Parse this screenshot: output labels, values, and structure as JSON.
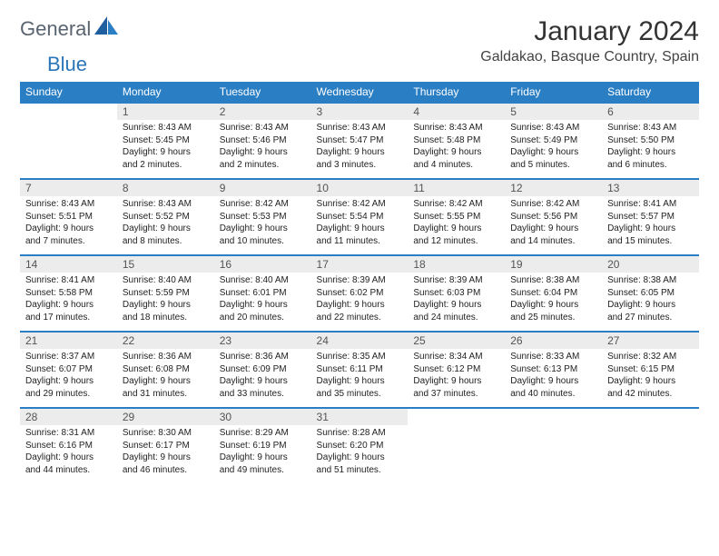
{
  "brand": {
    "text1": "General",
    "text2": "Blue"
  },
  "colors": {
    "brand_blue": "#2a76b8",
    "header_bg": "#2a7ec4",
    "header_text": "#ffffff",
    "daynum_bg": "#ececec",
    "daynum_text": "#545454",
    "body_text": "#222222",
    "grid_line": "#2a7ec4",
    "page_bg": "#ffffff"
  },
  "title": "January 2024",
  "location": "Galdakao, Basque Country, Spain",
  "weekdays": [
    "Sunday",
    "Monday",
    "Tuesday",
    "Wednesday",
    "Thursday",
    "Friday",
    "Saturday"
  ],
  "weeks": [
    [
      {
        "n": "",
        "lines": [
          "",
          "",
          "",
          ""
        ]
      },
      {
        "n": "1",
        "lines": [
          "Sunrise: 8:43 AM",
          "Sunset: 5:45 PM",
          "Daylight: 9 hours",
          "and 2 minutes."
        ]
      },
      {
        "n": "2",
        "lines": [
          "Sunrise: 8:43 AM",
          "Sunset: 5:46 PM",
          "Daylight: 9 hours",
          "and 2 minutes."
        ]
      },
      {
        "n": "3",
        "lines": [
          "Sunrise: 8:43 AM",
          "Sunset: 5:47 PM",
          "Daylight: 9 hours",
          "and 3 minutes."
        ]
      },
      {
        "n": "4",
        "lines": [
          "Sunrise: 8:43 AM",
          "Sunset: 5:48 PM",
          "Daylight: 9 hours",
          "and 4 minutes."
        ]
      },
      {
        "n": "5",
        "lines": [
          "Sunrise: 8:43 AM",
          "Sunset: 5:49 PM",
          "Daylight: 9 hours",
          "and 5 minutes."
        ]
      },
      {
        "n": "6",
        "lines": [
          "Sunrise: 8:43 AM",
          "Sunset: 5:50 PM",
          "Daylight: 9 hours",
          "and 6 minutes."
        ]
      }
    ],
    [
      {
        "n": "7",
        "lines": [
          "Sunrise: 8:43 AM",
          "Sunset: 5:51 PM",
          "Daylight: 9 hours",
          "and 7 minutes."
        ]
      },
      {
        "n": "8",
        "lines": [
          "Sunrise: 8:43 AM",
          "Sunset: 5:52 PM",
          "Daylight: 9 hours",
          "and 8 minutes."
        ]
      },
      {
        "n": "9",
        "lines": [
          "Sunrise: 8:42 AM",
          "Sunset: 5:53 PM",
          "Daylight: 9 hours",
          "and 10 minutes."
        ]
      },
      {
        "n": "10",
        "lines": [
          "Sunrise: 8:42 AM",
          "Sunset: 5:54 PM",
          "Daylight: 9 hours",
          "and 11 minutes."
        ]
      },
      {
        "n": "11",
        "lines": [
          "Sunrise: 8:42 AM",
          "Sunset: 5:55 PM",
          "Daylight: 9 hours",
          "and 12 minutes."
        ]
      },
      {
        "n": "12",
        "lines": [
          "Sunrise: 8:42 AM",
          "Sunset: 5:56 PM",
          "Daylight: 9 hours",
          "and 14 minutes."
        ]
      },
      {
        "n": "13",
        "lines": [
          "Sunrise: 8:41 AM",
          "Sunset: 5:57 PM",
          "Daylight: 9 hours",
          "and 15 minutes."
        ]
      }
    ],
    [
      {
        "n": "14",
        "lines": [
          "Sunrise: 8:41 AM",
          "Sunset: 5:58 PM",
          "Daylight: 9 hours",
          "and 17 minutes."
        ]
      },
      {
        "n": "15",
        "lines": [
          "Sunrise: 8:40 AM",
          "Sunset: 5:59 PM",
          "Daylight: 9 hours",
          "and 18 minutes."
        ]
      },
      {
        "n": "16",
        "lines": [
          "Sunrise: 8:40 AM",
          "Sunset: 6:01 PM",
          "Daylight: 9 hours",
          "and 20 minutes."
        ]
      },
      {
        "n": "17",
        "lines": [
          "Sunrise: 8:39 AM",
          "Sunset: 6:02 PM",
          "Daylight: 9 hours",
          "and 22 minutes."
        ]
      },
      {
        "n": "18",
        "lines": [
          "Sunrise: 8:39 AM",
          "Sunset: 6:03 PM",
          "Daylight: 9 hours",
          "and 24 minutes."
        ]
      },
      {
        "n": "19",
        "lines": [
          "Sunrise: 8:38 AM",
          "Sunset: 6:04 PM",
          "Daylight: 9 hours",
          "and 25 minutes."
        ]
      },
      {
        "n": "20",
        "lines": [
          "Sunrise: 8:38 AM",
          "Sunset: 6:05 PM",
          "Daylight: 9 hours",
          "and 27 minutes."
        ]
      }
    ],
    [
      {
        "n": "21",
        "lines": [
          "Sunrise: 8:37 AM",
          "Sunset: 6:07 PM",
          "Daylight: 9 hours",
          "and 29 minutes."
        ]
      },
      {
        "n": "22",
        "lines": [
          "Sunrise: 8:36 AM",
          "Sunset: 6:08 PM",
          "Daylight: 9 hours",
          "and 31 minutes."
        ]
      },
      {
        "n": "23",
        "lines": [
          "Sunrise: 8:36 AM",
          "Sunset: 6:09 PM",
          "Daylight: 9 hours",
          "and 33 minutes."
        ]
      },
      {
        "n": "24",
        "lines": [
          "Sunrise: 8:35 AM",
          "Sunset: 6:11 PM",
          "Daylight: 9 hours",
          "and 35 minutes."
        ]
      },
      {
        "n": "25",
        "lines": [
          "Sunrise: 8:34 AM",
          "Sunset: 6:12 PM",
          "Daylight: 9 hours",
          "and 37 minutes."
        ]
      },
      {
        "n": "26",
        "lines": [
          "Sunrise: 8:33 AM",
          "Sunset: 6:13 PM",
          "Daylight: 9 hours",
          "and 40 minutes."
        ]
      },
      {
        "n": "27",
        "lines": [
          "Sunrise: 8:32 AM",
          "Sunset: 6:15 PM",
          "Daylight: 9 hours",
          "and 42 minutes."
        ]
      }
    ],
    [
      {
        "n": "28",
        "lines": [
          "Sunrise: 8:31 AM",
          "Sunset: 6:16 PM",
          "Daylight: 9 hours",
          "and 44 minutes."
        ]
      },
      {
        "n": "29",
        "lines": [
          "Sunrise: 8:30 AM",
          "Sunset: 6:17 PM",
          "Daylight: 9 hours",
          "and 46 minutes."
        ]
      },
      {
        "n": "30",
        "lines": [
          "Sunrise: 8:29 AM",
          "Sunset: 6:19 PM",
          "Daylight: 9 hours",
          "and 49 minutes."
        ]
      },
      {
        "n": "31",
        "lines": [
          "Sunrise: 8:28 AM",
          "Sunset: 6:20 PM",
          "Daylight: 9 hours",
          "and 51 minutes."
        ]
      },
      {
        "n": "",
        "lines": [
          "",
          "",
          "",
          ""
        ]
      },
      {
        "n": "",
        "lines": [
          "",
          "",
          "",
          ""
        ]
      },
      {
        "n": "",
        "lines": [
          "",
          "",
          "",
          ""
        ]
      }
    ]
  ]
}
